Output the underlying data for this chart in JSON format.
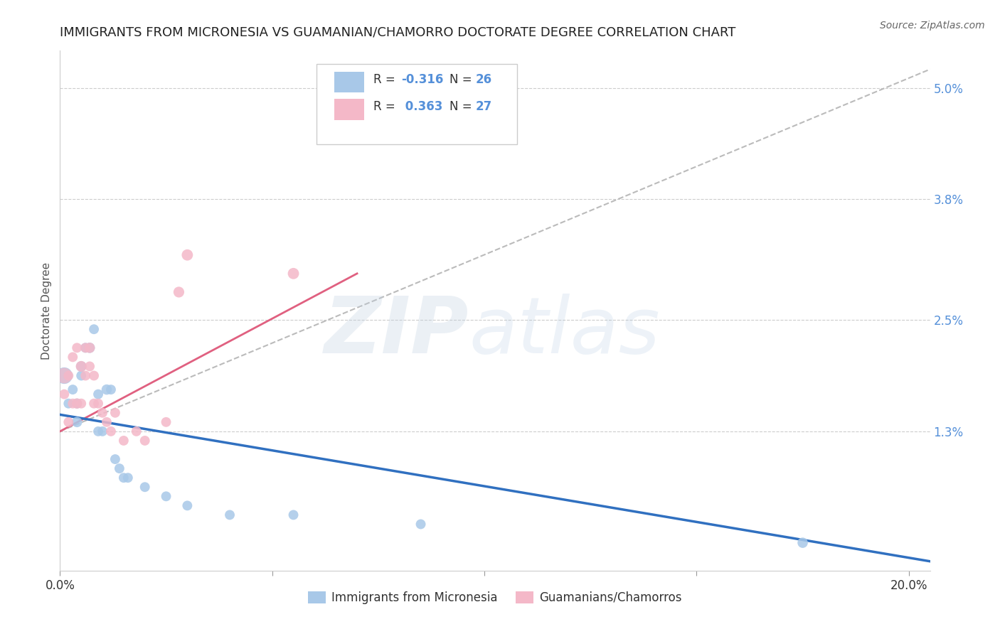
{
  "title": "IMMIGRANTS FROM MICRONESIA VS GUAMANIAN/CHAMORRO DOCTORATE DEGREE CORRELATION CHART",
  "source": "Source: ZipAtlas.com",
  "ylabel": "Doctorate Degree",
  "xlim": [
    0.0,
    0.205
  ],
  "ylim": [
    -0.002,
    0.054
  ],
  "xticks": [
    0.0,
    0.05,
    0.1,
    0.15,
    0.2
  ],
  "xticklabels": [
    "0.0%",
    "",
    "",
    "",
    "20.0%"
  ],
  "yticks_right": [
    0.0,
    0.013,
    0.025,
    0.038,
    0.05
  ],
  "yticks_right_labels": [
    "",
    "1.3%",
    "2.5%",
    "3.8%",
    "5.0%"
  ],
  "grid_yticks": [
    0.013,
    0.025,
    0.038,
    0.05
  ],
  "blue_color": "#a8c8e8",
  "pink_color": "#f4b8c8",
  "blue_line_color": "#3070c0",
  "pink_line_color": "#e06080",
  "dashed_line_color": "#bbbbbb",
  "r_blue": -0.316,
  "n_blue": 26,
  "r_pink": 0.363,
  "n_pink": 27,
  "blue_scatter": [
    [
      0.001,
      0.019
    ],
    [
      0.002,
      0.016
    ],
    [
      0.003,
      0.0175
    ],
    [
      0.004,
      0.014
    ],
    [
      0.004,
      0.016
    ],
    [
      0.005,
      0.02
    ],
    [
      0.005,
      0.019
    ],
    [
      0.006,
      0.022
    ],
    [
      0.007,
      0.022
    ],
    [
      0.008,
      0.024
    ],
    [
      0.009,
      0.017
    ],
    [
      0.009,
      0.013
    ],
    [
      0.01,
      0.013
    ],
    [
      0.011,
      0.0175
    ],
    [
      0.012,
      0.0175
    ],
    [
      0.013,
      0.01
    ],
    [
      0.014,
      0.009
    ],
    [
      0.015,
      0.008
    ],
    [
      0.016,
      0.008
    ],
    [
      0.02,
      0.007
    ],
    [
      0.025,
      0.006
    ],
    [
      0.03,
      0.005
    ],
    [
      0.04,
      0.004
    ],
    [
      0.055,
      0.004
    ],
    [
      0.085,
      0.003
    ],
    [
      0.175,
      0.001
    ]
  ],
  "pink_scatter": [
    [
      0.001,
      0.017
    ],
    [
      0.002,
      0.019
    ],
    [
      0.002,
      0.014
    ],
    [
      0.003,
      0.016
    ],
    [
      0.003,
      0.021
    ],
    [
      0.004,
      0.016
    ],
    [
      0.004,
      0.022
    ],
    [
      0.005,
      0.016
    ],
    [
      0.005,
      0.02
    ],
    [
      0.006,
      0.019
    ],
    [
      0.006,
      0.022
    ],
    [
      0.007,
      0.022
    ],
    [
      0.007,
      0.02
    ],
    [
      0.008,
      0.016
    ],
    [
      0.008,
      0.019
    ],
    [
      0.009,
      0.016
    ],
    [
      0.01,
      0.015
    ],
    [
      0.011,
      0.014
    ],
    [
      0.012,
      0.013
    ],
    [
      0.013,
      0.015
    ],
    [
      0.015,
      0.012
    ],
    [
      0.018,
      0.013
    ],
    [
      0.02,
      0.012
    ],
    [
      0.025,
      0.014
    ],
    [
      0.028,
      0.028
    ],
    [
      0.03,
      0.032
    ],
    [
      0.055,
      0.03
    ]
  ],
  "blue_scatter_sizes": [
    280,
    100,
    100,
    110,
    100,
    110,
    100,
    100,
    110,
    100,
    100,
    100,
    100,
    110,
    100,
    100,
    100,
    100,
    100,
    100,
    100,
    100,
    100,
    100,
    100,
    110
  ],
  "pink_scatter_sizes": [
    100,
    100,
    100,
    100,
    100,
    110,
    100,
    100,
    120,
    100,
    100,
    110,
    100,
    100,
    100,
    100,
    100,
    100,
    100,
    100,
    100,
    100,
    100,
    100,
    120,
    130,
    130
  ],
  "blue_line_x": [
    0.0,
    0.205
  ],
  "blue_line_y": [
    0.0148,
    -0.001
  ],
  "pink_line_x": [
    0.0,
    0.07
  ],
  "pink_line_y": [
    0.013,
    0.03
  ],
  "dashed_line_x": [
    0.0,
    0.205
  ],
  "dashed_line_y": [
    0.013,
    0.052
  ],
  "watermark_zip": "ZIP",
  "watermark_atlas": "atlas",
  "background_color": "#ffffff",
  "title_fontsize": 13,
  "axis_label_color": "#555555",
  "right_tick_color": "#5590d9",
  "legend_r_color": "#5590d9",
  "legend_n_color": "#5590d9"
}
